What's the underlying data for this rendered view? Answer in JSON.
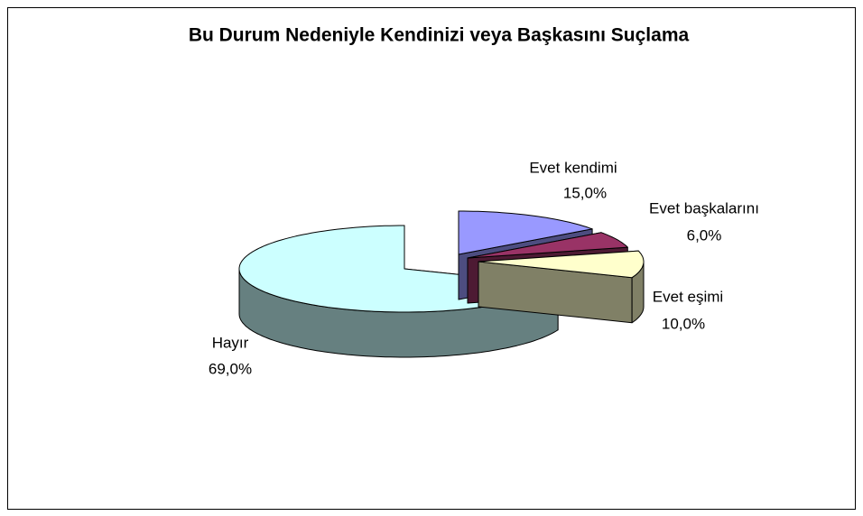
{
  "chart_data": {
    "type": "pie3d",
    "title": "Bu Durum Nedeniyle Kendinizi veya Başkasını Suçlama",
    "categories": [
      "Evet kendimi",
      "Evet başkalarını",
      "Evet eşimi",
      "Hayır"
    ],
    "values": [
      15,
      6,
      10,
      69
    ],
    "value_labels": [
      "15,0%",
      "6,0%",
      "10,0%",
      "69,0%"
    ],
    "colors": [
      "#9999ff",
      "#993366",
      "#ffffcc",
      "#ccffff"
    ]
  }
}
